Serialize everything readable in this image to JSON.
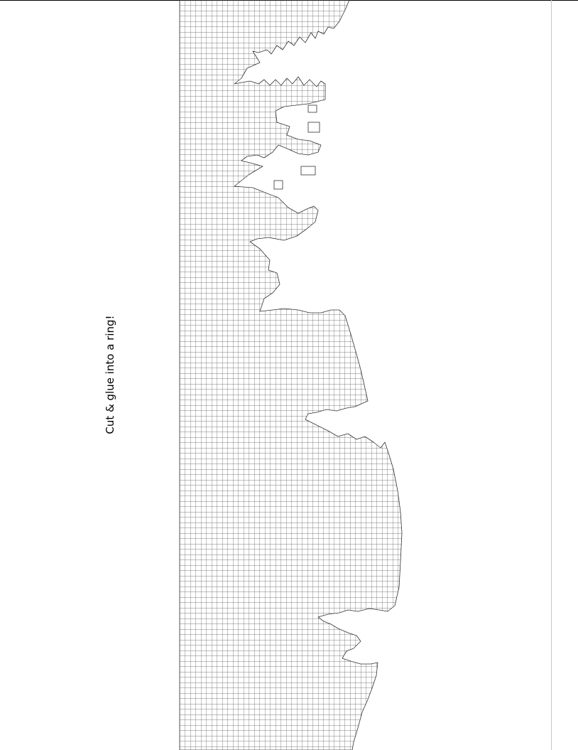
{
  "instruction": "Cut & glue into a ring!",
  "colors": {
    "grid_line": "#555555",
    "page_border": "#000000",
    "margin_rule": "#c8c8c8",
    "background": "#ffffff"
  }
}
